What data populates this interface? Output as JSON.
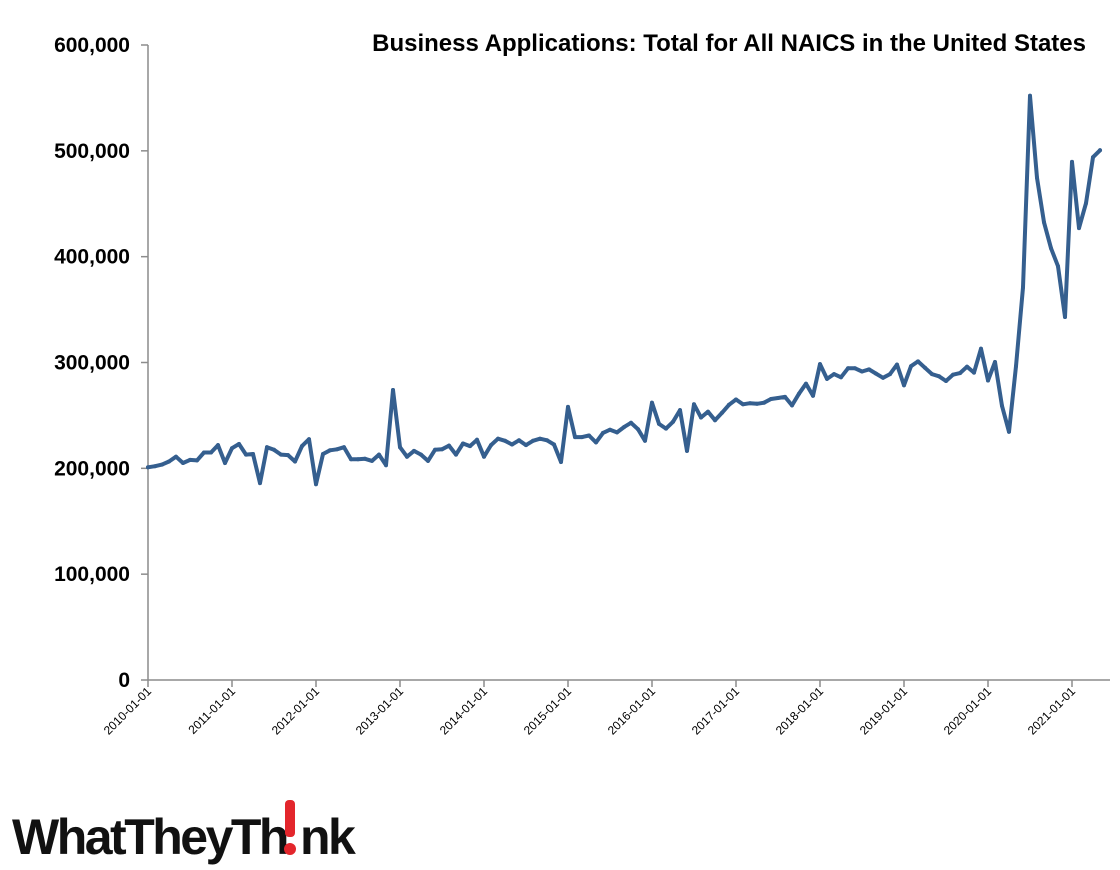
{
  "colors": {
    "line": "#355f8f",
    "axis": "#8c8c8c",
    "logo_accent": "#e3262c"
  },
  "logo": {
    "text": "WhatTheyTh!nk"
  },
  "chart_data": {
    "type": "line",
    "title": "Business Applications: Total for All NAICS in the United States",
    "xlabel": "",
    "ylabel": "",
    "ylim": [
      0,
      600000
    ],
    "yticks": [
      0,
      100000,
      200000,
      300000,
      400000,
      500000,
      600000
    ],
    "ytick_labels": [
      "0",
      "100,000",
      "200,000",
      "300,000",
      "400,000",
      "500,000",
      "600,000"
    ],
    "xtick_labels": [
      "2010-01-01",
      "2011-01-01",
      "2012-01-01",
      "2013-01-01",
      "2014-01-01",
      "2015-01-01",
      "2016-01-01",
      "2017-01-01",
      "2018-01-01",
      "2019-01-01",
      "2020-01-01",
      "2021-01-01"
    ],
    "grid": false,
    "legend": "none",
    "series": [
      {
        "start": "2010-01",
        "frequency": "monthly",
        "values": [
          201000,
          202000,
          203500,
          206500,
          211000,
          205000,
          208000,
          207500,
          215000,
          215000,
          222000,
          205000,
          219000,
          223000,
          213000,
          213500,
          186000,
          220000,
          217500,
          213000,
          212500,
          206500,
          221000,
          227500,
          185000,
          213500,
          217000,
          218000,
          220000,
          208500,
          208500,
          209000,
          207000,
          213000,
          203000,
          274000,
          220000,
          211000,
          216500,
          213000,
          207000,
          217500,
          218000,
          221500,
          213000,
          223500,
          221000,
          227000,
          211000,
          222000,
          228000,
          226000,
          222500,
          226500,
          222000,
          226000,
          228000,
          226500,
          222500,
          206000,
          258000,
          229500,
          229500,
          231000,
          224500,
          233500,
          236500,
          234000,
          239000,
          243000,
          237000,
          226000,
          262000,
          242000,
          237500,
          244000,
          255000,
          216500,
          260500,
          248000,
          253500,
          245500,
          252500,
          260000,
          265000,
          260500,
          261500,
          261000,
          262000,
          265500,
          266500,
          267500,
          259500,
          270500,
          280000,
          268500,
          298500,
          284500,
          289000,
          286000,
          294500,
          294500,
          291500,
          293500,
          289500,
          285500,
          289000,
          298000,
          278500,
          296500,
          301000,
          295000,
          289000,
          287000,
          282500,
          288500,
          290000,
          296000,
          290500,
          313000,
          283000,
          300500,
          259000,
          234500,
          296500,
          371000,
          552000,
          474500,
          432500,
          408000,
          391000,
          343000,
          489500,
          427000,
          450500,
          494000,
          500500
        ]
      }
    ]
  }
}
